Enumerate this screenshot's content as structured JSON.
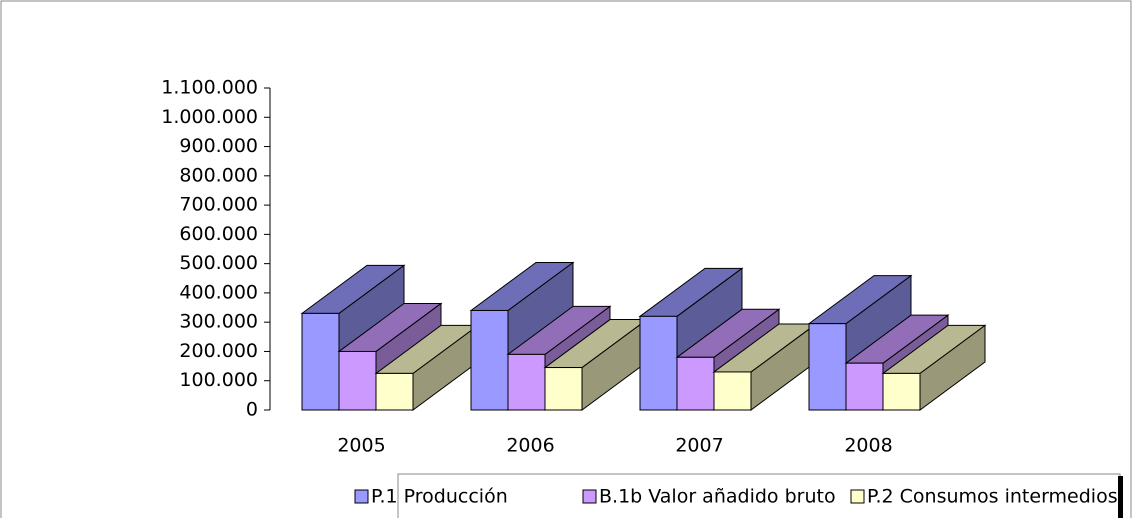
{
  "chart_data": {
    "type": "bar3d",
    "categories": [
      "2005",
      "2006",
      "2007",
      "2008"
    ],
    "series": [
      {
        "name": "P.1 Producción",
        "color": "#9999ff",
        "values": [
          330000,
          340000,
          320000,
          295000
        ]
      },
      {
        "name": "B.1b Valor añadido bruto",
        "color": "#cc99ff",
        "values": [
          200000,
          190000,
          180000,
          160000
        ]
      },
      {
        "name": "P.2 Consumos intermedios",
        "color": "#ffffcc",
        "values": [
          125000,
          145000,
          130000,
          125000
        ]
      }
    ],
    "ylim": [
      0,
      1100000
    ],
    "yticks": [
      0,
      {
        "value": 100000,
        "label": "100.000"
      },
      {
        "value": 200000,
        "label": "200.000"
      },
      {
        "value": 300000,
        "label": "300.000"
      },
      {
        "value": 400000,
        "label": "400.000"
      },
      {
        "value": 500000,
        "label": "500.000"
      },
      {
        "value": 600000,
        "label": "600.000"
      },
      {
        "value": 700000,
        "label": "700.000"
      },
      {
        "value": 800000,
        "label": "800.000"
      },
      {
        "value": 900000,
        "label": "900.000"
      },
      {
        "value": 1000000,
        "label": "1.000.000"
      },
      {
        "value": 1100000,
        "label": "1.100.000"
      }
    ],
    "legend": "bottom"
  }
}
